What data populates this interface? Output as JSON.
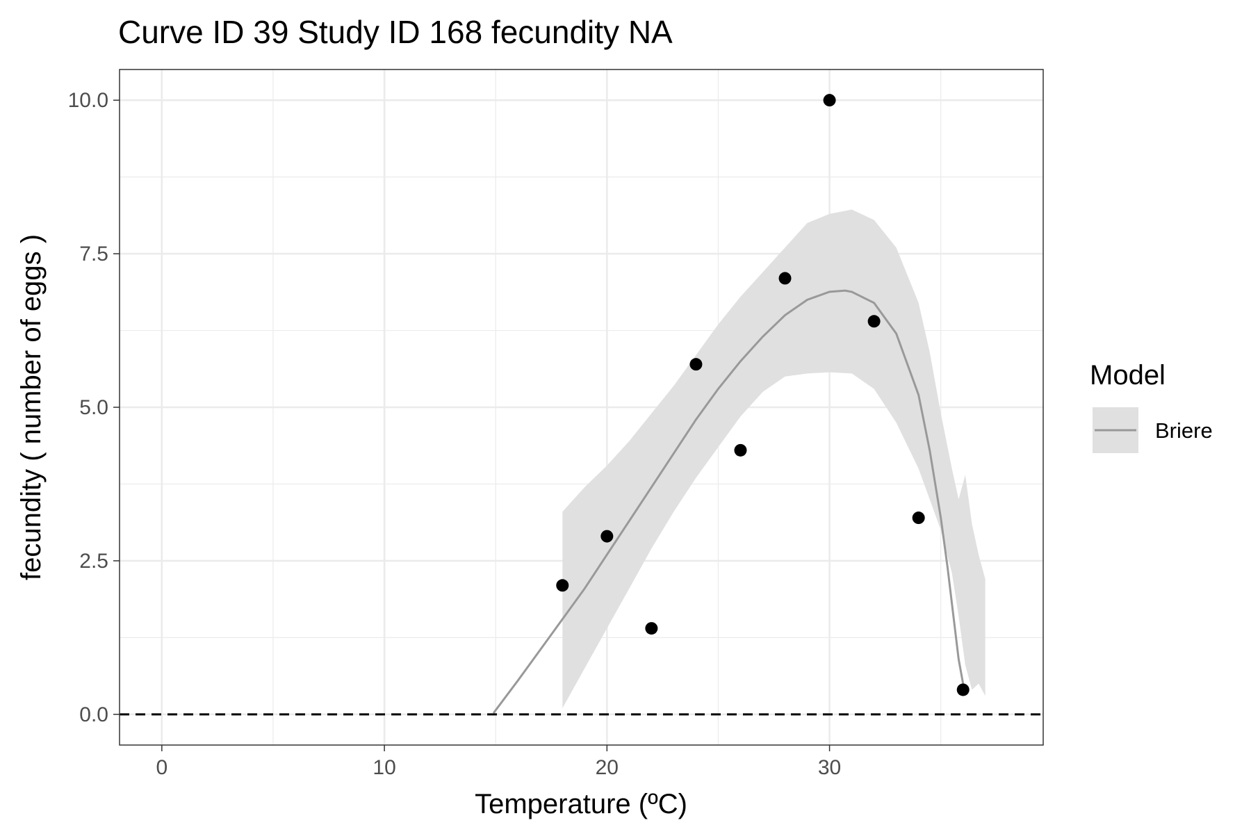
{
  "chart_data": {
    "type": "line",
    "title": "Curve ID 39 Study ID 168 fecundity NA",
    "xlabel": "Temperature (ºC)",
    "ylabel": "fecundity ( number of eggs )",
    "xlim": [
      -1.9,
      39.6
    ],
    "ylim": [
      -0.5,
      10.5
    ],
    "x_ticks": [
      0,
      10,
      20,
      30
    ],
    "x_tick_labels": [
      "0",
      "10",
      "20",
      "30"
    ],
    "x_minor_ticks": [
      5,
      15,
      25,
      35
    ],
    "y_ticks": [
      0,
      2.5,
      5,
      7.5,
      10
    ],
    "y_tick_labels": [
      "0.0",
      "2.5",
      "5.0",
      "7.5",
      "10.0"
    ],
    "y_minor_ticks": [
      1.25,
      3.75,
      6.25,
      8.75
    ],
    "reference_line": {
      "y": 0,
      "style": "dashed",
      "color": "#000000"
    },
    "grid": true,
    "legend": {
      "title": "Model",
      "position": "right",
      "entries": [
        {
          "label": "Briere",
          "line_color": "#999999",
          "fill_color": "#e0e0e0"
        }
      ]
    },
    "points": {
      "color": "#000000",
      "x": [
        18,
        20,
        22,
        24,
        26,
        28,
        30,
        32,
        34,
        36
      ],
      "y": [
        2.1,
        2.9,
        1.4,
        5.7,
        4.3,
        7.1,
        10.0,
        6.4,
        3.2,
        0.4
      ]
    },
    "series": [
      {
        "name": "Briere",
        "color": "#999999",
        "x": [
          14.9,
          16,
          17,
          18,
          19,
          20,
          21,
          22,
          23,
          24,
          25,
          26,
          27,
          28,
          29,
          30,
          30.7,
          31,
          32,
          33,
          34,
          34.5,
          35,
          35.3,
          35.6,
          35.8,
          36.0
        ],
        "y": [
          0.02,
          0.55,
          1.05,
          1.55,
          2.05,
          2.6,
          3.15,
          3.7,
          4.25,
          4.8,
          5.3,
          5.75,
          6.15,
          6.5,
          6.75,
          6.88,
          6.9,
          6.88,
          6.7,
          6.2,
          5.2,
          4.3,
          3.2,
          2.4,
          1.5,
          0.9,
          0.5
        ]
      }
    ],
    "confidence_band": {
      "color": "#e0e0e0",
      "x": [
        18,
        19,
        20,
        21,
        22,
        23,
        24,
        25,
        26,
        27,
        28,
        29,
        30,
        31,
        32,
        33,
        34,
        34.5,
        35,
        35.5,
        35.8,
        36.1,
        36.4,
        36.7,
        37.0
      ],
      "upper": [
        3.3,
        3.7,
        4.05,
        4.45,
        4.9,
        5.35,
        5.85,
        6.35,
        6.8,
        7.2,
        7.6,
        8.0,
        8.15,
        8.22,
        8.05,
        7.6,
        6.7,
        5.9,
        4.9,
        4.0,
        3.5,
        3.9,
        3.1,
        2.6,
        2.2
      ],
      "lower": [
        0.1,
        0.75,
        1.4,
        2.05,
        2.7,
        3.3,
        3.85,
        4.35,
        4.85,
        5.25,
        5.5,
        5.55,
        5.57,
        5.55,
        5.3,
        4.75,
        4.0,
        3.5,
        3.0,
        2.3,
        1.6,
        0.8,
        0.4,
        0.5,
        0.3
      ]
    }
  }
}
